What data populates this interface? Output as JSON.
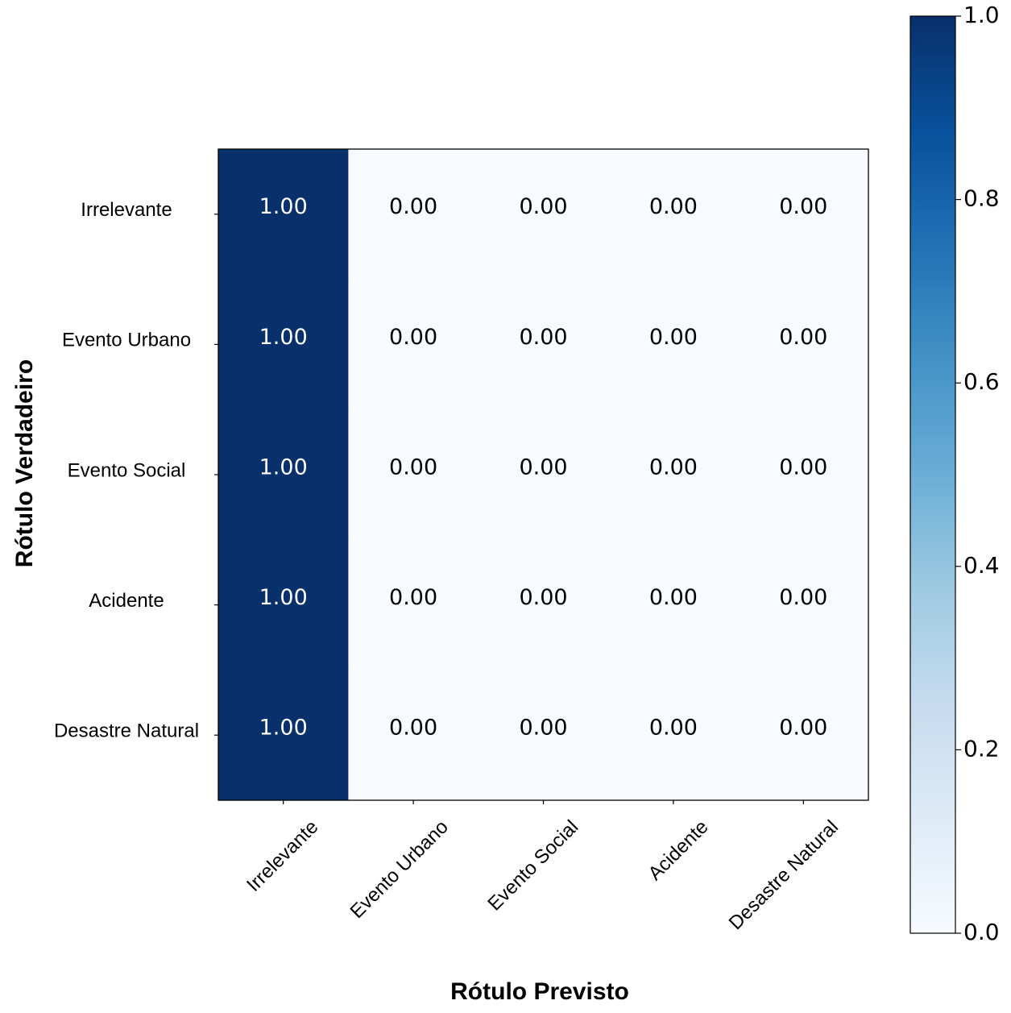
{
  "chart_data": {
    "type": "heatmap",
    "title": "",
    "xlabel": "Rótulo Previsto",
    "ylabel": "Rótulo Verdadeiro",
    "x_categories": [
      "Irrelevante",
      "Evento Urbano",
      "Evento Social",
      "Acidente",
      "Desastre Natural"
    ],
    "y_categories": [
      "Irrelevante",
      "Evento Urbano",
      "Evento Social",
      "Acidente",
      "Desastre Natural"
    ],
    "values": [
      [
        1.0,
        0.0,
        0.0,
        0.0,
        0.0
      ],
      [
        1.0,
        0.0,
        0.0,
        0.0,
        0.0
      ],
      [
        1.0,
        0.0,
        0.0,
        0.0,
        0.0
      ],
      [
        1.0,
        0.0,
        0.0,
        0.0,
        0.0
      ],
      [
        1.0,
        0.0,
        0.0,
        0.0,
        0.0
      ]
    ],
    "cell_labels": [
      [
        "1.00",
        "0.00",
        "0.00",
        "0.00",
        "0.00"
      ],
      [
        "1.00",
        "0.00",
        "0.00",
        "0.00",
        "0.00"
      ],
      [
        "1.00",
        "0.00",
        "0.00",
        "0.00",
        "0.00"
      ],
      [
        "1.00",
        "0.00",
        "0.00",
        "0.00",
        "0.00"
      ],
      [
        "1.00",
        "0.00",
        "0.00",
        "0.00",
        "0.00"
      ]
    ],
    "colorbar": {
      "colormap": "Blues",
      "range": [
        0.0,
        1.0
      ],
      "tick_values": [
        0.0,
        0.2,
        0.4,
        0.6,
        0.8,
        1.0
      ],
      "tick_labels": [
        "0.0",
        "0.2",
        "0.4",
        "0.6",
        "0.8",
        "1.0"
      ],
      "low_color": "#f7fbff",
      "high_color": "#08306b"
    }
  }
}
